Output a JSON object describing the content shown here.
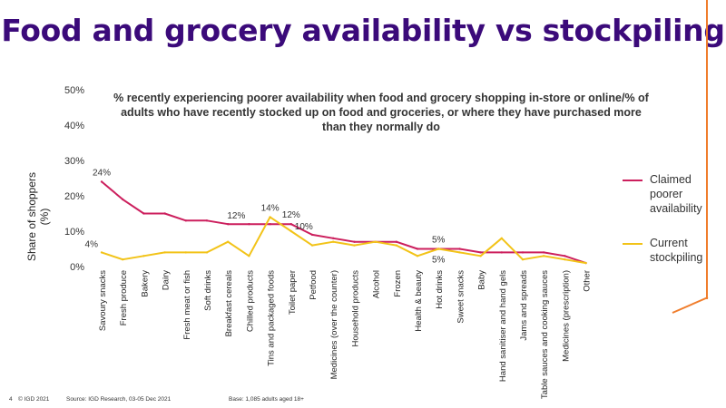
{
  "title": "Food and grocery availability vs stockpiling",
  "subtitle": "% recently experiencing poorer availability when food and grocery shopping in-store or online/% of adults who have recently stocked up on food and groceries, or where they have purchased more than they normally do",
  "footer": {
    "page_number": "4",
    "copyright": "© IGD 2021",
    "source": "Source: IGD Research, 03-05 Dec 2021",
    "base": "Base: 1,085 adults aged 18+"
  },
  "colors": {
    "title": "#3b0a7a",
    "claimed": "#cc1f5d",
    "stockpiling": "#f2c318",
    "accent": "#f07d2c"
  },
  "chart_data": {
    "type": "line",
    "ylabel": "Share of shoppers (%)",
    "ylim": [
      0,
      50
    ],
    "yticks": [
      "0%",
      "10%",
      "20%",
      "30%",
      "40%",
      "50%"
    ],
    "grid": false,
    "legend_position": "right",
    "categories": [
      "Savoury snacks",
      "Fresh produce",
      "Bakery",
      "Dairy",
      "Fresh meat or fish",
      "Soft drinks",
      "Breakfast cereals",
      "Chilled products",
      "Tins and packaged foods",
      "Toilet paper",
      "Petfood",
      "Medicines (over the counter)",
      "Household products",
      "Alcohol",
      "Frozen",
      "Health & beauty",
      "Hot drinks",
      "Sweet snacks",
      "Baby",
      "Hand sanitiser and hand gels",
      "Jams and spreads",
      "Table sauces and cooking sauces",
      "Medicines (prescription)",
      "Other"
    ],
    "series": [
      {
        "name": "Claimed poorer availability",
        "color": "#cc1f5d",
        "values": [
          24,
          19,
          15,
          15,
          13,
          13,
          12,
          12,
          12,
          12,
          9,
          8,
          7,
          7,
          7,
          5,
          5,
          5,
          4,
          4,
          4,
          4,
          3,
          1
        ]
      },
      {
        "name": "Current stockpiling",
        "color": "#f2c318",
        "values": [
          4,
          2,
          3,
          4,
          4,
          4,
          7,
          3,
          14,
          10,
          6,
          7,
          6,
          7,
          6,
          3,
          5,
          4,
          3,
          8,
          2,
          3,
          2,
          1
        ]
      }
    ],
    "annotations": [
      {
        "text": "24%",
        "category_index": 0,
        "series": 0,
        "position": "above"
      },
      {
        "text": "4%",
        "category_index": 0,
        "series": 1,
        "position": "left"
      },
      {
        "text": "12%",
        "category_index": 7,
        "series": 0,
        "position": "left"
      },
      {
        "text": "14%",
        "category_index": 8,
        "series": 1,
        "position": "above"
      },
      {
        "text": "12%",
        "category_index": 9,
        "series": 0,
        "position": "above"
      },
      {
        "text": "10%",
        "category_index": 9,
        "series": 1,
        "position": "right"
      },
      {
        "text": "5%",
        "category_index": 16,
        "series": 0,
        "position": "above"
      },
      {
        "text": "5%",
        "category_index": 16,
        "series": 1,
        "position": "below"
      }
    ]
  }
}
